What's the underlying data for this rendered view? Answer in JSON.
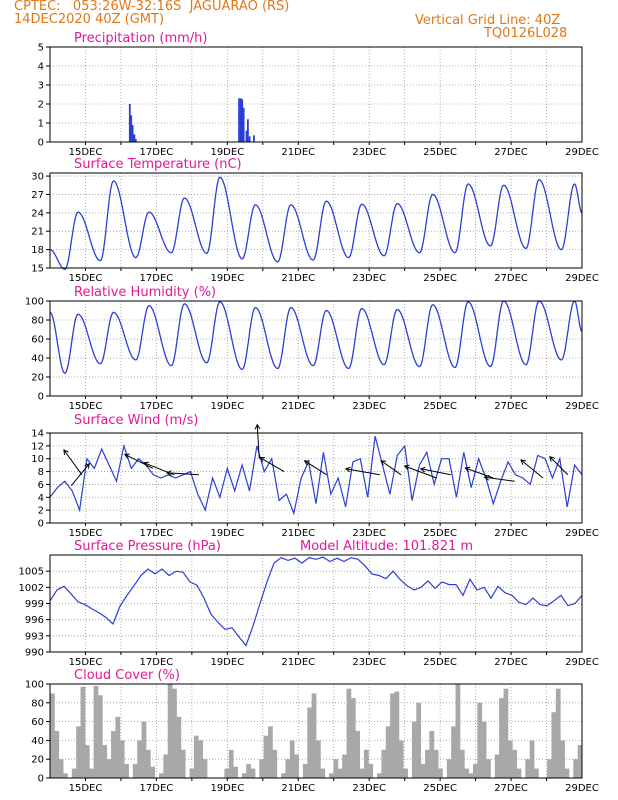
{
  "header": {
    "line1_left": "CPTEC:   053:26W-32:16S  JAGUARAO (RS)",
    "line2_left": "14DEC2020 40Z (GMT)",
    "line1_right": "Vertical Grid Line: 40Z",
    "line2_right": "TQ0126L028"
  },
  "colors": {
    "header": "#e07818",
    "panel_title": "#e0189a",
    "line": "#2a3fd6",
    "bars": "#a8a8a8",
    "grid": "#9a9a9a"
  },
  "x_labels": [
    "15DEC",
    "17DEC",
    "19DEC",
    "21DEC",
    "23DEC",
    "25DEC",
    "27DEC",
    "29DEC"
  ],
  "chart_data": [
    {
      "type": "bar",
      "title": "Precipitation (mm/h)",
      "ylim": [
        0,
        5
      ],
      "yticks": [
        0,
        1,
        2,
        3,
        4,
        5
      ],
      "x_unit": "days since 14DEC 00Z",
      "bars": [
        [
          2.25,
          2.0
        ],
        [
          2.29,
          1.4
        ],
        [
          2.33,
          0.9
        ],
        [
          2.38,
          0.4
        ],
        [
          2.42,
          0.15
        ],
        [
          5.33,
          2.3
        ],
        [
          5.38,
          2.3
        ],
        [
          5.42,
          2.25
        ],
        [
          5.46,
          1.8
        ],
        [
          5.54,
          0.6
        ],
        [
          5.58,
          1.2
        ],
        [
          5.63,
          0.3
        ],
        [
          5.75,
          0.35
        ]
      ]
    },
    {
      "type": "line",
      "title": "Surface Temperature (nC)",
      "ylim": [
        15,
        30.5
      ],
      "yticks": [
        15,
        18,
        21,
        24,
        27,
        30
      ],
      "daily_min": [
        14.8,
        16.2,
        16.7,
        17.5,
        17.4,
        16.5,
        16.0,
        16.3,
        16.7,
        17.0,
        17.5,
        17.5,
        18.6,
        18.2,
        18.0
      ],
      "daily_max": [
        24.1,
        29.2,
        24.1,
        26.4,
        29.8,
        25.3,
        25.3,
        25.9,
        25.4,
        25.5,
        27.0,
        28.7,
        28.5,
        29.4,
        28.7
      ],
      "start_value": 18.0,
      "end_value": 24.0
    },
    {
      "type": "line",
      "title": "Relative Humidity (%)",
      "ylim": [
        0,
        100
      ],
      "yticks": [
        0,
        20,
        40,
        60,
        80,
        100
      ],
      "daily_min": [
        24,
        34,
        38,
        32,
        35,
        28,
        29,
        32,
        29,
        33,
        31,
        30,
        31,
        33,
        38
      ],
      "daily_max": [
        86,
        88,
        95,
        97,
        99,
        93,
        93,
        90,
        92,
        91,
        96,
        99,
        100,
        100,
        100
      ],
      "start_value": 88,
      "end_value": 68
    },
    {
      "type": "line",
      "title": "Surface Wind (m/s)",
      "ylim": [
        0,
        14
      ],
      "yticks": [
        0,
        2,
        4,
        6,
        8,
        10,
        12,
        14
      ],
      "speed": [
        4.0,
        5.5,
        6.5,
        5.0,
        2.0,
        10.0,
        8.5,
        11.5,
        9.0,
        6.5,
        12.0,
        8.5,
        10.0,
        9.0,
        7.5,
        7.0,
        7.5,
        7.0,
        7.5,
        8.0,
        4.5,
        2.0,
        7.0,
        4.0,
        8.5,
        5.0,
        9.0,
        5.0,
        12.0,
        8.0,
        10.0,
        3.5,
        4.5,
        1.5,
        7.0,
        9.5,
        3.0,
        11.0,
        4.5,
        7.0,
        2.5,
        9.5,
        10.0,
        4.0,
        13.5,
        9.0,
        4.5,
        10.5,
        12.0,
        3.5,
        9.0,
        11.0,
        6.0,
        10.0,
        10.0,
        4.0,
        11.0,
        5.5,
        10.0,
        7.0,
        3.0,
        6.5,
        9.5,
        7.5,
        7.0,
        6.0,
        10.5,
        10.0,
        7.0,
        10.0,
        2.5,
        9.0,
        7.5
      ],
      "vectors": [
        [
          0.6,
          5.8,
          0.45,
          0.55
        ],
        [
          0.9,
          7.5,
          -0.45,
          0.62
        ],
        [
          2.9,
          8.5,
          -0.7,
          0.35
        ],
        [
          3.5,
          7.5,
          -0.75,
          0.3
        ],
        [
          4.2,
          7.5,
          -0.8,
          0.05
        ],
        [
          5.9,
          10.0,
          -0.05,
          0.85
        ],
        [
          6.6,
          8.0,
          -0.6,
          0.35
        ],
        [
          7.8,
          7.5,
          -0.55,
          0.35
        ],
        [
          9.3,
          7.5,
          -0.85,
          0.15
        ],
        [
          9.9,
          7.5,
          -0.5,
          0.35
        ],
        [
          10.9,
          7.0,
          -0.8,
          0.3
        ],
        [
          11.3,
          7.5,
          -0.75,
          0.15
        ],
        [
          12.5,
          7.0,
          -0.7,
          0.25
        ],
        [
          13.1,
          6.5,
          -0.75,
          0.1
        ],
        [
          13.9,
          7.0,
          -0.55,
          0.45
        ],
        [
          14.6,
          7.5,
          -0.45,
          0.45
        ]
      ]
    },
    {
      "type": "line",
      "title": "Surface Pressure (hPa)",
      "subtitle": "Model Altitude: 101.821 m",
      "ylim": [
        990,
        1008
      ],
      "yticks": [
        990,
        993,
        996,
        999,
        1002,
        1005
      ],
      "values": [
        999.5,
        1001.5,
        1002.2,
        1000.8,
        999.3,
        998.8,
        998.0,
        997.3,
        996.4,
        995.2,
        998.5,
        1000.5,
        1002.3,
        1004.2,
        1005.4,
        1004.5,
        1005.4,
        1004.2,
        1005.0,
        1004.8,
        1003.0,
        1002.4,
        1000.0,
        997.0,
        995.5,
        994.2,
        994.5,
        992.8,
        991.2,
        994.8,
        999.0,
        1003.0,
        1006.5,
        1007.5,
        1007.0,
        1007.4,
        1006.5,
        1007.5,
        1007.2,
        1007.6,
        1006.8,
        1007.4,
        1006.8,
        1007.5,
        1007.2,
        1006.0,
        1004.5,
        1004.2,
        1003.6,
        1005.0,
        1003.5,
        1002.3,
        1001.5,
        1002.0,
        1003.2,
        1001.8,
        1003.0,
        1002.5,
        1002.5,
        1000.5,
        1003.5,
        1001.5,
        1002.0,
        1000.0,
        1002.2,
        1001.0,
        1000.5,
        999.2,
        998.8,
        1000.0,
        998.8,
        998.6,
        999.5,
        1000.5,
        998.6,
        999.0,
        1000.5
      ]
    },
    {
      "type": "bar",
      "title": "Cloud Cover (%)",
      "ylim": [
        0,
        100
      ],
      "yticks": [
        0,
        20,
        40,
        60,
        80,
        100
      ],
      "values": [
        90,
        50,
        20,
        5,
        0,
        10,
        55,
        97,
        35,
        10,
        98,
        88,
        35,
        20,
        50,
        65,
        40,
        15,
        0,
        15,
        40,
        60,
        30,
        12,
        0,
        5,
        25,
        100,
        95,
        65,
        30,
        0,
        10,
        45,
        40,
        20,
        0,
        0,
        0,
        0,
        10,
        30,
        12,
        0,
        5,
        15,
        10,
        0,
        20,
        45,
        55,
        30,
        0,
        5,
        20,
        40,
        25,
        0,
        15,
        75,
        90,
        40,
        10,
        0,
        5,
        20,
        10,
        25,
        95,
        85,
        50,
        10,
        30,
        15,
        0,
        5,
        30,
        55,
        90,
        92,
        40,
        10,
        0,
        60,
        80,
        15,
        30,
        50,
        30,
        10,
        0,
        20,
        55,
        100,
        30,
        10,
        5,
        15,
        80,
        60,
        20,
        0,
        25,
        85,
        95,
        40,
        30,
        10,
        0,
        20,
        40,
        10,
        0,
        0,
        20,
        70,
        95,
        40,
        10,
        0,
        20,
        35
      ]
    }
  ]
}
